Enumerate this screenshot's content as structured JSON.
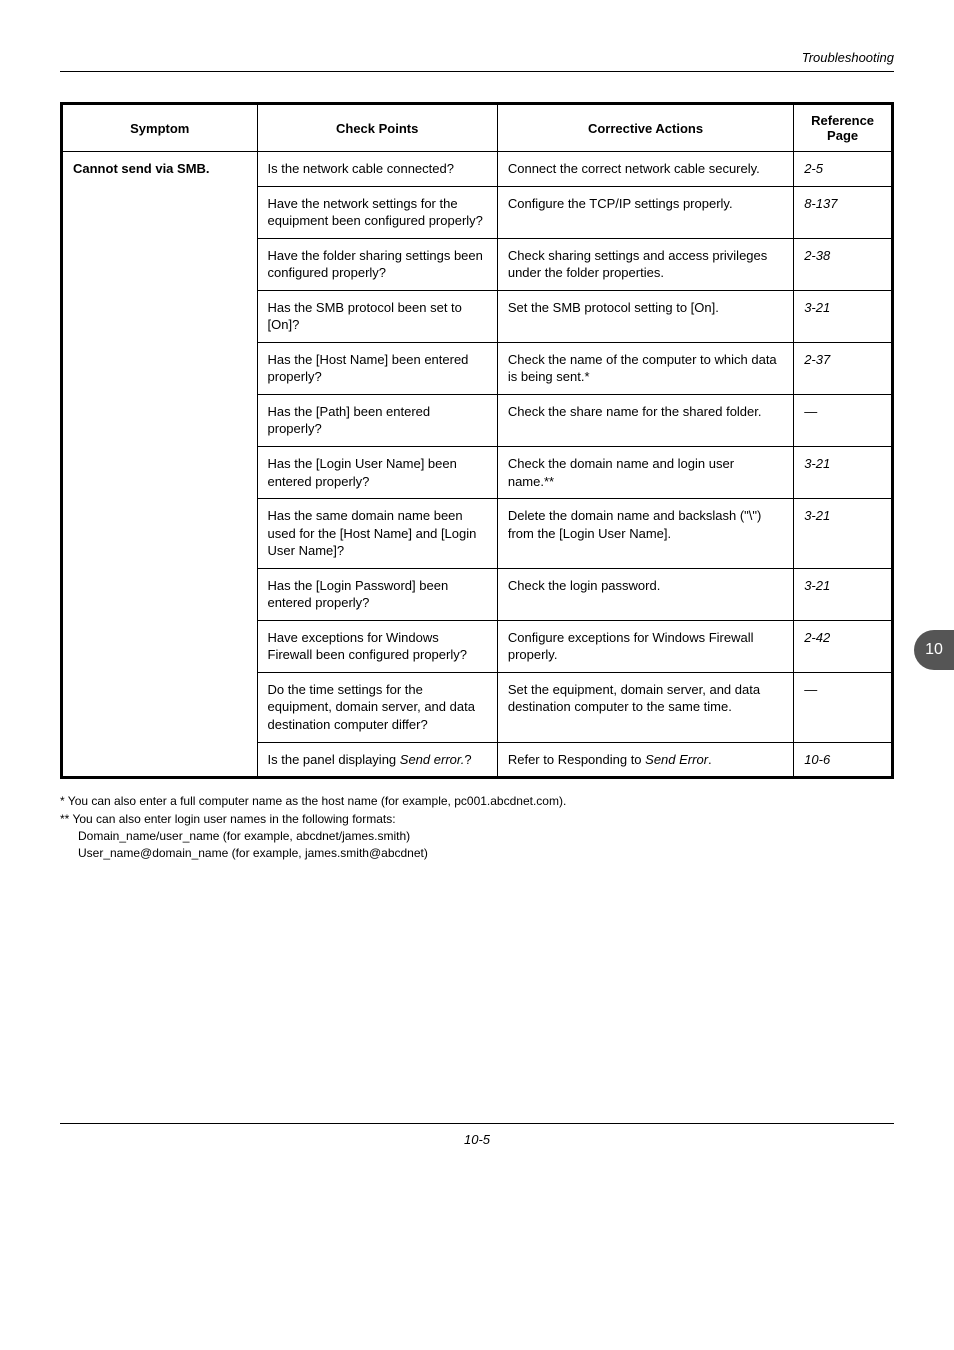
{
  "header": {
    "section": "Troubleshooting"
  },
  "sideTab": "10",
  "pageNumber": "10-5",
  "table": {
    "headers": {
      "symptom": "Symptom",
      "check": "Check Points",
      "corrective": "Corrective Actions",
      "reference": "Reference Page"
    },
    "symptom": "Cannot send via SMB.",
    "rows": [
      {
        "check": "Is the network cable connected?",
        "corr": "Connect the correct network cable securely.",
        "ref": "2-5"
      },
      {
        "check": "Have the network settings for the equipment been configured properly?",
        "corr": "Configure the TCP/IP settings properly.",
        "ref": "8-137"
      },
      {
        "check": "Have the folder sharing settings been configured properly?",
        "corr": "Check sharing settings and access privileges under the folder properties.",
        "ref": "2-38"
      },
      {
        "check": "Has the SMB protocol been set to [On]?",
        "corr": "Set the SMB protocol setting to [On].",
        "ref": "3-21"
      },
      {
        "check": "Has the [Host Name] been entered properly?",
        "corr": "Check the name of the computer to which data is being sent.*",
        "ref": "2-37"
      },
      {
        "check": "Has the [Path] been entered properly?",
        "corr": "Check the share name for the shared folder.",
        "ref": "—"
      },
      {
        "check": "Has the [Login User Name] been entered properly?",
        "corr": "Check the domain name and login user name.**",
        "ref": "3-21"
      },
      {
        "check": "Has the same domain name been used for the [Host Name] and [Login User Name]?",
        "corr": "Delete the domain name and backslash (\"\\\") from the [Login User Name].",
        "ref": "3-21"
      },
      {
        "check": "Has the [Login Password] been entered properly?",
        "corr": "Check the login password.",
        "ref": "3-21"
      },
      {
        "check": "Have exceptions for Windows Firewall been configured properly?",
        "corr": "Configure exceptions for Windows Firewall properly.",
        "ref": "2-42"
      },
      {
        "check": "Do the time settings for the equipment, domain server, and data destination computer differ?",
        "corr": "Set the equipment, domain server, and data destination computer to the same time.",
        "ref": "—"
      },
      {
        "check_html": "Is the panel displaying <i>Send error.</i>?",
        "corr_html": "Refer to Responding to <i>Send Error</i>.",
        "ref": "10-6"
      }
    ]
  },
  "footnotes": {
    "l1": "*   You can also enter a full computer name as the host name (for example, pc001.abcdnet.com).",
    "l2": "**  You can also enter login user names in the following formats:",
    "l3": "Domain_name/user_name (for example, abcdnet/james.smith)",
    "l4": "User_name@domain_name (for example, james.smith@abcdnet)"
  }
}
